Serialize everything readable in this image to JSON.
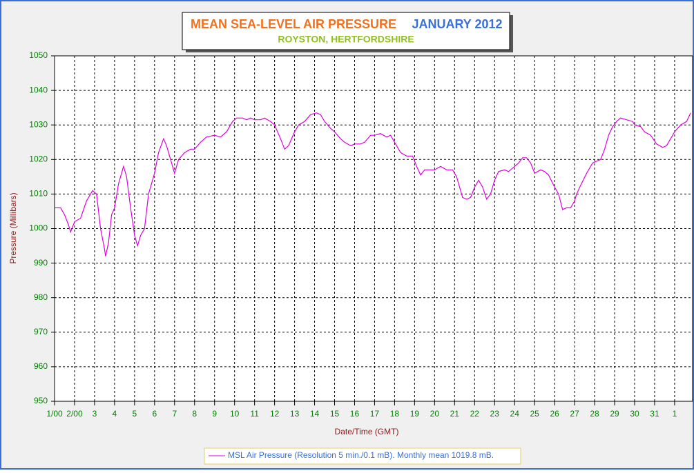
{
  "chart_data": {
    "type": "line",
    "title": "MEAN SEA-LEVEL AIR PRESSURE",
    "title_month": "JANUARY 2012",
    "subtitle": "ROYSTON, HERTFORDSHIRE",
    "xlabel": "Date/Time (GMT)",
    "ylabel": "Pressure (Millibars)",
    "xlim": [
      0,
      31.9
    ],
    "ylim": [
      950,
      1050
    ],
    "yticks": [
      950,
      960,
      970,
      980,
      990,
      1000,
      1010,
      1020,
      1030,
      1040,
      1050
    ],
    "xticks": [
      {
        "value": 0,
        "label": "1/00"
      },
      {
        "value": 1,
        "label": "2/00"
      },
      {
        "value": 2,
        "label": "3"
      },
      {
        "value": 3,
        "label": "4"
      },
      {
        "value": 4,
        "label": "5"
      },
      {
        "value": 5,
        "label": "6"
      },
      {
        "value": 6,
        "label": "7"
      },
      {
        "value": 7,
        "label": "8"
      },
      {
        "value": 8,
        "label": "9"
      },
      {
        "value": 9,
        "label": "10"
      },
      {
        "value": 10,
        "label": "11"
      },
      {
        "value": 11,
        "label": "12"
      },
      {
        "value": 12,
        "label": "13"
      },
      {
        "value": 13,
        "label": "14"
      },
      {
        "value": 14,
        "label": "15"
      },
      {
        "value": 15,
        "label": "16"
      },
      {
        "value": 16,
        "label": "17"
      },
      {
        "value": 17,
        "label": "18"
      },
      {
        "value": 18,
        "label": "19"
      },
      {
        "value": 19,
        "label": "20"
      },
      {
        "value": 20,
        "label": "21"
      },
      {
        "value": 21,
        "label": "22"
      },
      {
        "value": 22,
        "label": "23"
      },
      {
        "value": 23,
        "label": "24"
      },
      {
        "value": 24,
        "label": "25"
      },
      {
        "value": 25,
        "label": "26"
      },
      {
        "value": 26,
        "label": "27"
      },
      {
        "value": 27,
        "label": "28"
      },
      {
        "value": 28,
        "label": "29"
      },
      {
        "value": 29,
        "label": "30"
      },
      {
        "value": 30,
        "label": "31"
      },
      {
        "value": 31,
        "label": "1"
      }
    ],
    "grid": true,
    "x": [
      0,
      0.3,
      0.5,
      0.7,
      0.8,
      1.0,
      1.3,
      1.6,
      1.9,
      2.1,
      2.3,
      2.5,
      2.55,
      2.7,
      2.85,
      3.0,
      3.2,
      3.45,
      3.6,
      3.8,
      4.0,
      4.15,
      4.3,
      4.5,
      4.7,
      5.0,
      5.2,
      5.45,
      5.6,
      5.8,
      6.0,
      6.2,
      6.5,
      6.8,
      7.0,
      7.3,
      7.6,
      8.0,
      8.3,
      8.6,
      8.9,
      9.1,
      9.4,
      9.6,
      9.8,
      10.0,
      10.3,
      10.5,
      10.8,
      11.0,
      11.3,
      11.5,
      11.7,
      12.0,
      12.2,
      12.5,
      12.8,
      13.1,
      13.3,
      13.5,
      13.8,
      14.0,
      14.3,
      14.5,
      14.8,
      15.0,
      15.3,
      15.5,
      15.8,
      16.0,
      16.3,
      16.6,
      16.8,
      17.0,
      17.3,
      17.6,
      17.9,
      18.1,
      18.3,
      18.5,
      18.8,
      19.0,
      19.3,
      19.6,
      19.9,
      20.1,
      20.4,
      20.6,
      20.8,
      21.0,
      21.2,
      21.4,
      21.6,
      21.8,
      22.0,
      22.2,
      22.5,
      22.7,
      22.9,
      23.2,
      23.4,
      23.6,
      23.8,
      24.0,
      24.3,
      24.5,
      24.7,
      25.0,
      25.2,
      25.4,
      25.6,
      25.8,
      26.0,
      26.1,
      26.3,
      26.6,
      26.9,
      27.1,
      27.3,
      27.5,
      27.7,
      27.9,
      28.1,
      28.3,
      28.6,
      28.9,
      29.0,
      29.3,
      29.5,
      29.8,
      30.1,
      30.4,
      30.6,
      30.8,
      31.0,
      31.3,
      31.6,
      31.8
    ],
    "series": [
      {
        "name": "MSL Air Pressure (Resolution 5 min./0.1 mB). Monthly mean 1019.8 mB.",
        "color": "#e000e0",
        "values": [
          1006,
          1006,
          1004,
          1001,
          999,
          1002,
          1003,
          1008,
          1011,
          1010,
          1000,
          994,
          992,
          996,
          1004,
          1006,
          1013,
          1018,
          1015,
          1006,
          998,
          995,
          998,
          1000,
          1010,
          1016,
          1022,
          1026,
          1024,
          1020,
          1016,
          1020,
          1022,
          1023,
          1023,
          1025,
          1026.5,
          1027,
          1026.5,
          1028,
          1031,
          1032,
          1032,
          1031.5,
          1032,
          1031.5,
          1031.5,
          1032,
          1031,
          1030,
          1026,
          1023,
          1024,
          1028,
          1030,
          1031,
          1033,
          1033.5,
          1033,
          1031,
          1029,
          1028,
          1026,
          1025,
          1024,
          1024.5,
          1024.5,
          1025,
          1027,
          1027,
          1027.5,
          1026.5,
          1027,
          1025,
          1022,
          1021,
          1021,
          1018,
          1015.5,
          1017,
          1017,
          1017,
          1018,
          1017,
          1017,
          1015,
          1009,
          1008.5,
          1009,
          1012,
          1014,
          1012,
          1008.5,
          1010,
          1014,
          1016.5,
          1017,
          1016.5,
          1017.5,
          1019,
          1020.5,
          1020.5,
          1019,
          1016,
          1017,
          1016.5,
          1015.5,
          1012,
          1010,
          1005.5,
          1006,
          1006,
          1008,
          1010,
          1012.5,
          1016,
          1019,
          1019.5,
          1020,
          1023,
          1027,
          1029.5,
          1031,
          1032,
          1031.5,
          1031,
          1030,
          1029.5,
          1028,
          1027,
          1024.5,
          1023.5,
          1024,
          1026,
          1028,
          1030,
          1031,
          1033.5
        ]
      }
    ]
  }
}
